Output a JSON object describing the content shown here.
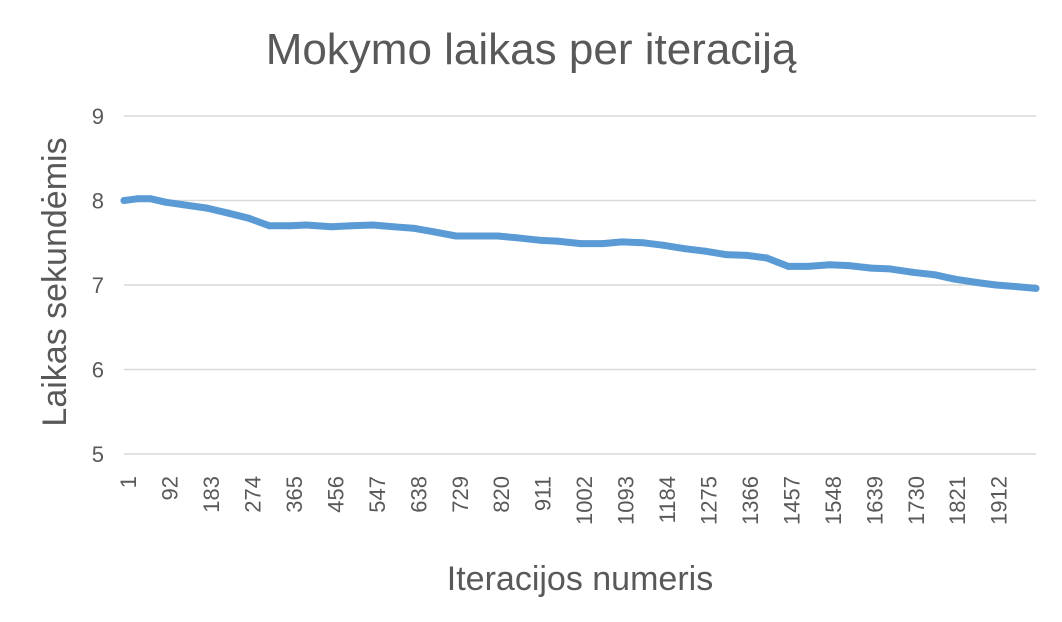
{
  "chart_data": {
    "type": "line",
    "title": "Mokymo laikas per iteraciją",
    "xlabel": "Iteracijos numeris",
    "ylabel": "Laikas sekundėmis",
    "ylim": [
      5,
      9
    ],
    "yticks": [
      5,
      6,
      7,
      8,
      9
    ],
    "xlim": [
      1,
      2000
    ],
    "xticks": [
      "1",
      "92",
      "183",
      "274",
      "365",
      "456",
      "547",
      "638",
      "729",
      "820",
      "911",
      "1002",
      "1093",
      "1184",
      "1275",
      "1366",
      "1457",
      "1548",
      "1639",
      "1730",
      "1821",
      "1912"
    ],
    "grid": true,
    "legend": "none",
    "colors": {
      "line": "#5b9bd5",
      "grid": "#d9d9d9",
      "text": "#595959"
    },
    "series": [
      {
        "x": [
          1,
          30,
          60,
          92,
          130,
          183,
          230,
          274,
          320,
          365,
          400,
          456,
          500,
          547,
          590,
          638,
          680,
          729,
          770,
          820,
          860,
          911,
          950,
          1002,
          1050,
          1093,
          1140,
          1184,
          1230,
          1275,
          1320,
          1366,
          1410,
          1457,
          1500,
          1548,
          1590,
          1639,
          1680,
          1730,
          1780,
          1821,
          1870,
          1912,
          1960,
          2000
        ],
        "values": [
          8.0,
          8.02,
          8.02,
          7.98,
          7.95,
          7.91,
          7.85,
          7.79,
          7.7,
          7.7,
          7.71,
          7.69,
          7.7,
          7.71,
          7.69,
          7.67,
          7.63,
          7.58,
          7.58,
          7.58,
          7.56,
          7.53,
          7.52,
          7.49,
          7.49,
          7.51,
          7.5,
          7.47,
          7.43,
          7.4,
          7.36,
          7.35,
          7.32,
          7.22,
          7.22,
          7.24,
          7.23,
          7.2,
          7.19,
          7.15,
          7.12,
          7.07,
          7.03,
          7.0,
          6.98,
          6.96
        ]
      }
    ]
  }
}
